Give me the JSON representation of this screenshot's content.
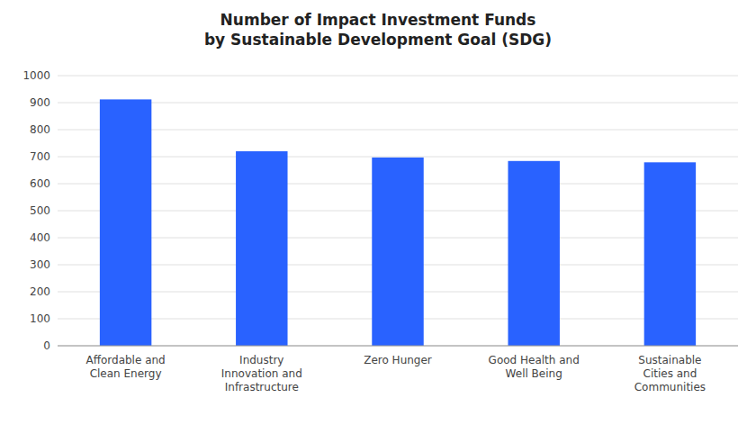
{
  "chart_data": {
    "type": "bar",
    "title": "Number of Impact Investment Funds\nby Sustainable Development Goal (SDG)",
    "categories": [
      "Affordable and\nClean Energy",
      "Industry\nInnovation and\nInfrastructure",
      "Zero Hunger",
      "Good Health and\nWell Being",
      "Sustainable\nCities and\nCommunities"
    ],
    "values": [
      912,
      720,
      697,
      684,
      679
    ],
    "color": "#2962FF",
    "ylim": [
      0,
      1000
    ],
    "yticks": [
      0,
      100,
      200,
      300,
      400,
      500,
      600,
      700,
      800,
      900,
      1000
    ],
    "grid": true
  }
}
